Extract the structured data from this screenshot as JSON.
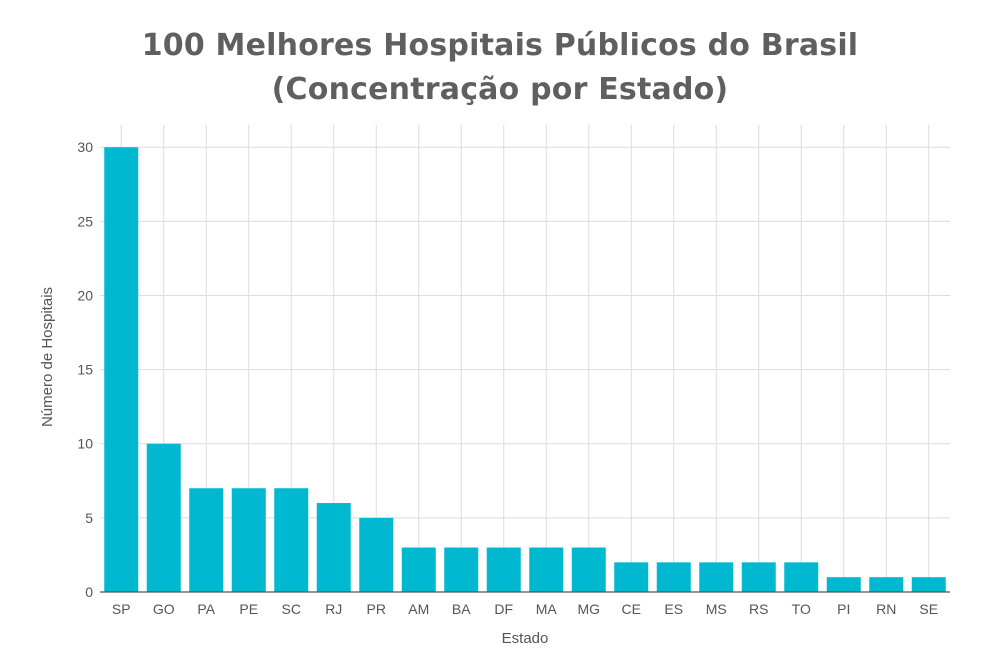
{
  "chart_data": {
    "type": "bar",
    "title": "100 Melhores Hospitais Públicos do Brasil",
    "subtitle": "(Concentração por Estado)",
    "xlabel": "Estado",
    "ylabel": "Número de Hospitais",
    "ylim": [
      0,
      31.5
    ],
    "yticks": [
      0,
      5,
      10,
      15,
      20,
      25,
      30
    ],
    "grid": true,
    "categories": [
      "SP",
      "GO",
      "PA",
      "PE",
      "SC",
      "RJ",
      "PR",
      "AM",
      "BA",
      "DF",
      "MA",
      "MG",
      "CE",
      "ES",
      "MS",
      "RS",
      "TO",
      "PI",
      "RN",
      "SE"
    ],
    "values": [
      30,
      10,
      7,
      7,
      7,
      6,
      5,
      3,
      3,
      3,
      3,
      3,
      2,
      2,
      2,
      2,
      2,
      1,
      1,
      1
    ],
    "bar_color": "#00b8cf",
    "grid_color": "#dcdcdc",
    "axis_color": "#555555",
    "text_color": "#555555"
  }
}
